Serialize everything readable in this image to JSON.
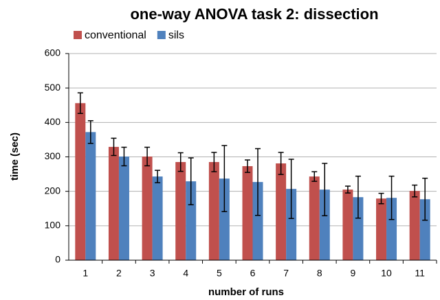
{
  "chart_data": {
    "type": "bar",
    "title": "one-way ANOVA task 2: dissection",
    "x_label": "number of runs",
    "y_label": "time (sec)",
    "categories": [
      "1",
      "2",
      "3",
      "4",
      "5",
      "6",
      "7",
      "8",
      "9",
      "10",
      "11"
    ],
    "series": [
      {
        "name": "conventional",
        "color": "#c0504d",
        "values": [
          456,
          329,
          301,
          285,
          285,
          273,
          281,
          243,
          205,
          179,
          201
        ],
        "errors": [
          30,
          25,
          27,
          27,
          28,
          18,
          32,
          14,
          10,
          15,
          17
        ]
      },
      {
        "name": "sils",
        "color": "#4f81bd",
        "values": [
          372,
          301,
          243,
          229,
          237,
          227,
          207,
          205,
          183,
          181,
          177
        ],
        "errors": [
          33,
          27,
          18,
          68,
          96,
          97,
          86,
          76,
          61,
          63,
          61
        ]
      }
    ],
    "ylim": [
      0,
      600
    ],
    "yticks": [
      0,
      100,
      200,
      300,
      400,
      500,
      600
    ],
    "grid": true,
    "legend": "top"
  }
}
